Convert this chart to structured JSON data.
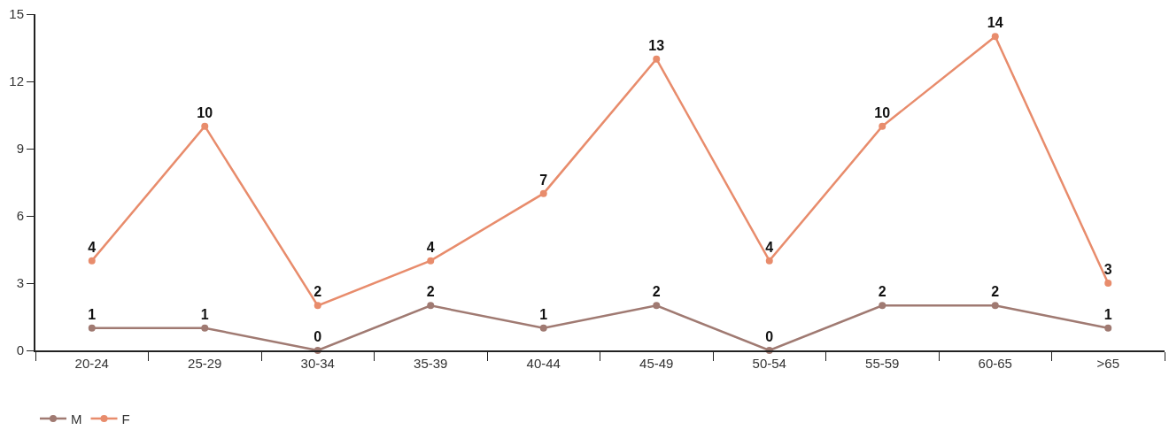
{
  "chart_data": {
    "type": "line",
    "categories": [
      "20-24",
      "25-29",
      "30-34",
      "35-39",
      "40-44",
      "45-49",
      "50-54",
      "55-59",
      "60-65",
      ">65"
    ],
    "series": [
      {
        "name": "M",
        "color": "#a07a72",
        "values": [
          1,
          1,
          0,
          2,
          1,
          2,
          0,
          2,
          2,
          1
        ]
      },
      {
        "name": "F",
        "color": "#e88c6c",
        "values": [
          4,
          10,
          2,
          4,
          7,
          13,
          4,
          10,
          14,
          3
        ]
      }
    ],
    "ylim": [
      0,
      15
    ],
    "yticks": [
      0,
      3,
      6,
      9,
      12,
      15
    ],
    "data_labels": true,
    "legend": "bottom left",
    "marker": "circle",
    "line_style": "solid"
  }
}
